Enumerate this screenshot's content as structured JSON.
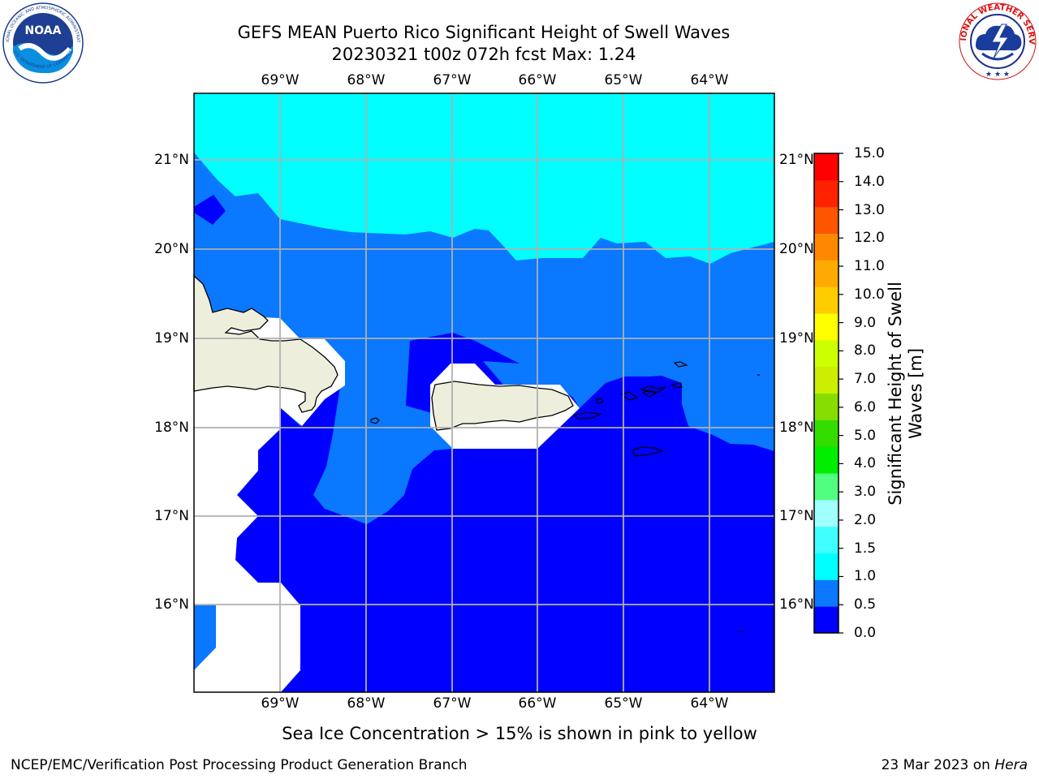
{
  "header": {
    "title_line1": "GEFS MEAN Puerto Rico Significant Height of Swell Waves",
    "title_line2": "20230321 t00z 072h fcst   Max: 1.24"
  },
  "logos": {
    "left": {
      "icon": "noaa-logo",
      "text": "NOAA",
      "ring_text": "NATIONAL OCEANIC AND ATMOSPHERIC ADMINISTRATION · U.S. DEPARTMENT OF COMMERCE"
    },
    "right": {
      "icon": "nws-logo",
      "ring_text": "NATIONAL WEATHER SERVICE"
    }
  },
  "map": {
    "lon_ticks": [
      "69°W",
      "68°W",
      "67°W",
      "66°W",
      "65°W",
      "64°W"
    ],
    "lat_ticks": [
      "21°N",
      "20°N",
      "19°N",
      "18°N",
      "17°N",
      "16°N"
    ],
    "colors": {
      "land": "#eeeedd",
      "no_data": "#ffffff",
      "gridline": "#b0b0b0",
      "coastline": "#000000",
      "frame": "#000000"
    }
  },
  "colorbar": {
    "title": "Significant Height of Swell\nWaves [m]",
    "title_line1": "Significant Height of Swell",
    "title_line2": "Waves [m]",
    "levels": [
      "0.0",
      "0.5",
      "1.0",
      "1.5",
      "2.0",
      "3.0",
      "4.0",
      "5.0",
      "6.0",
      "7.0",
      "8.0",
      "9.0",
      "10.0",
      "11.0",
      "12.0",
      "13.0",
      "14.0",
      "15.0"
    ],
    "colors": [
      "#0000ff",
      "#0a78ff",
      "#00ffff",
      "#40ffff",
      "#a0ffff",
      "#50ff80",
      "#00ee00",
      "#33dd00",
      "#88dd00",
      "#ccee00",
      "#ccff00",
      "#ffff00",
      "#ffcc00",
      "#ffaa00",
      "#ff8800",
      "#ff5500",
      "#ff2200",
      "#ff0000"
    ]
  },
  "legend_fills": {
    "band_0_0_5": "#0000ff",
    "band_0_5_1_0": "#0a78ff",
    "band_1_0_1_5": "#00ffff"
  },
  "footer": {
    "note": "Sea Ice Concentration > 15% is shown in pink to yellow",
    "left": "NCEP/EMC/Verification Post Processing Product Generation Branch",
    "right_prefix": "23 Mar 2023 on ",
    "right_machine": "Hera"
  }
}
